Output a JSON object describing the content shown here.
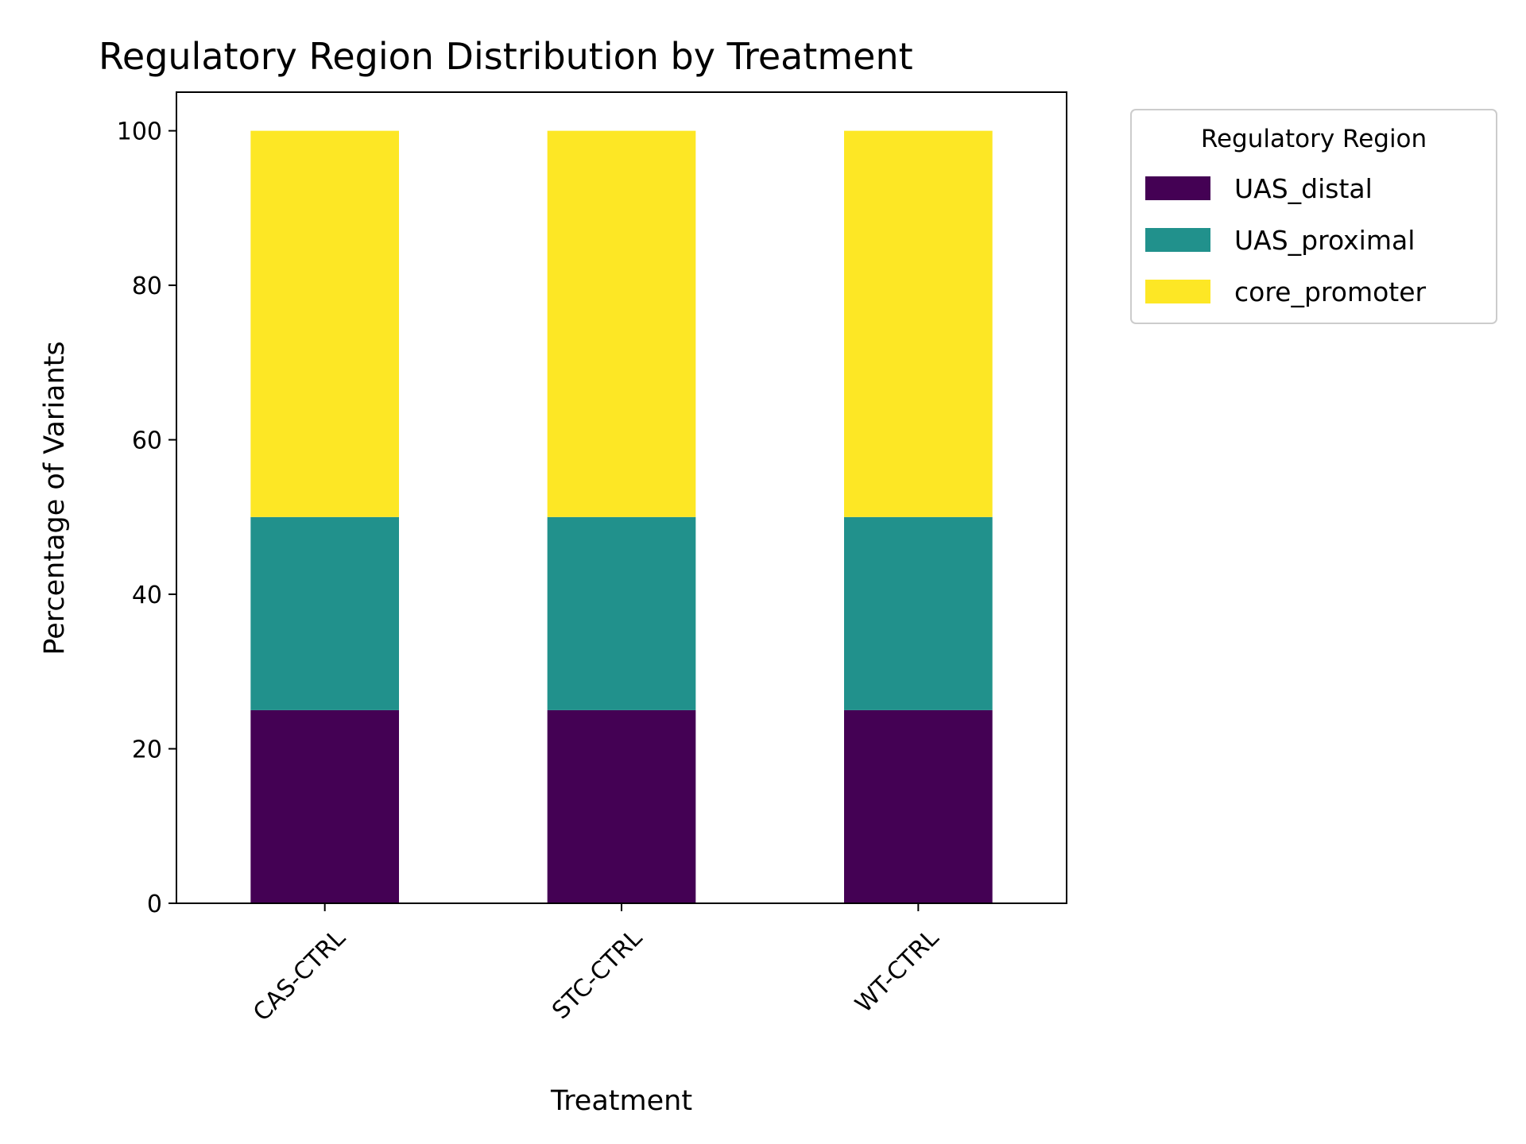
{
  "chart_data": {
    "type": "bar",
    "stacked": true,
    "title": "Regulatory Region Distribution by Treatment",
    "xlabel": "Treatment",
    "ylabel": "Percentage of Variants",
    "categories": [
      "CAS-CTRL",
      "STC-CTRL",
      "WT-CTRL"
    ],
    "series": [
      {
        "name": "UAS_distal",
        "color": "#440154",
        "values": [
          25,
          25,
          25
        ]
      },
      {
        "name": "UAS_proximal",
        "color": "#21918c",
        "values": [
          25,
          25,
          25
        ]
      },
      {
        "name": "core_promoter",
        "color": "#fde725",
        "values": [
          50,
          50,
          50
        ]
      }
    ],
    "ylim": [
      0,
      105
    ],
    "yticks": [
      0,
      20,
      40,
      60,
      80,
      100
    ],
    "legend": {
      "title": "Regulatory Region",
      "placement": "outside-top-right"
    },
    "grid": false
  }
}
